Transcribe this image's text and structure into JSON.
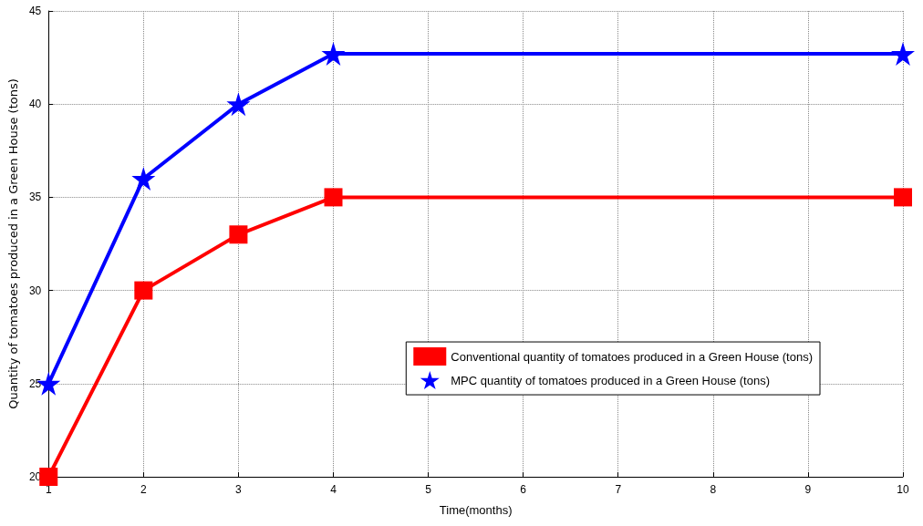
{
  "chart_data": {
    "type": "line",
    "xlabel": "Time(months)",
    "ylabel": "Quantity of tomatoes produced in a Green House (tons)",
    "xlim": [
      1,
      10
    ],
    "xticks": [
      1,
      2,
      3,
      4,
      5,
      6,
      7,
      8,
      9,
      10
    ],
    "ylim": [
      20,
      45
    ],
    "yticks": [
      20,
      25,
      30,
      35,
      40,
      45
    ],
    "grid": true,
    "legend": "center",
    "series": [
      {
        "name": "Conventional quantity of tomatoes produced in a Green House (tons)",
        "color": "#ff0000",
        "marker": "square",
        "x": [
          1,
          2,
          3,
          4,
          10
        ],
        "values": [
          20,
          30,
          33,
          35,
          35
        ]
      },
      {
        "name": "MPC quantity of tomatoes produced in a Green House (tons)",
        "color": "#0000ff",
        "marker": "star",
        "x": [
          1,
          2,
          3,
          4,
          10
        ],
        "values": [
          25,
          36,
          40,
          42.7,
          42.7
        ]
      }
    ]
  }
}
